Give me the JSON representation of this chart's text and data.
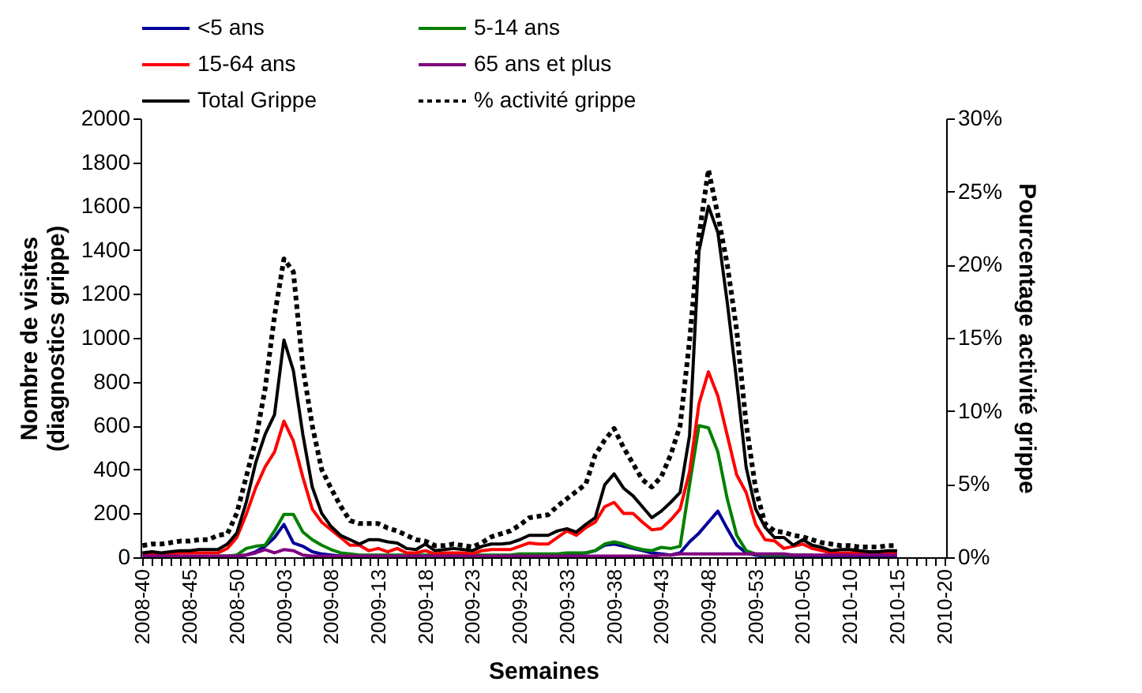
{
  "chart_data": {
    "type": "line",
    "xlabel": "Semaines",
    "ylabel": "Nombre de visites (diagnostics grippe)",
    "y2label": "Pourcentage activité grippe",
    "categories": [
      "2008-40",
      null,
      null,
      null,
      null,
      "2008-45",
      null,
      null,
      null,
      null,
      "2008-50",
      null,
      null,
      null,
      null,
      "2009-03",
      null,
      null,
      null,
      null,
      "2009-08",
      null,
      null,
      null,
      null,
      "2009-13",
      null,
      null,
      null,
      null,
      "2009-18",
      null,
      null,
      null,
      null,
      "2009-23",
      null,
      null,
      null,
      null,
      "2009-28",
      null,
      null,
      null,
      null,
      "2009-33",
      null,
      null,
      null,
      null,
      "2009-38",
      null,
      null,
      null,
      null,
      "2009-43",
      null,
      null,
      null,
      null,
      "2009-48",
      null,
      null,
      null,
      null,
      "2009-53",
      null,
      null,
      null,
      null,
      "2010-05",
      null,
      null,
      null,
      null,
      "2010-10",
      null,
      null,
      null,
      null,
      "2010-15",
      null,
      null,
      null,
      null,
      "2010-20"
    ],
    "ylim": [
      0,
      2000
    ],
    "yticks": [
      0,
      200,
      400,
      600,
      800,
      1000,
      1200,
      1400,
      1600,
      1800,
      2000
    ],
    "y2lim": [
      0,
      30
    ],
    "y2ticks": [
      {
        "value": 0,
        "label": "0%"
      },
      {
        "value": 5,
        "label": "5%"
      },
      {
        "value": 10,
        "label": "10%"
      },
      {
        "value": 15,
        "label": "15%"
      },
      {
        "value": 20,
        "label": "20%"
      },
      {
        "value": 25,
        "label": "25%"
      },
      {
        "value": 30,
        "label": "30%"
      }
    ],
    "legend": "top",
    "grid": false,
    "series": [
      {
        "name": "<5 ans",
        "color": "#000099",
        "values": [
          null,
          null,
          null,
          null,
          null,
          null,
          null,
          null,
          null,
          5,
          5,
          10,
          25,
          50,
          90,
          150,
          65,
          50,
          25,
          15,
          10,
          5,
          5,
          5,
          5,
          5,
          5,
          5,
          5,
          5,
          5,
          5,
          5,
          5,
          5,
          5,
          5,
          5,
          5,
          5,
          5,
          5,
          10,
          10,
          10,
          10,
          15,
          20,
          30,
          55,
          60,
          50,
          40,
          30,
          20,
          15,
          10,
          20,
          70,
          110,
          160,
          210,
          130,
          55,
          20,
          10,
          5,
          5,
          5,
          5,
          5,
          5,
          5,
          5,
          5,
          5,
          5,
          5,
          5,
          5,
          5,
          null,
          null,
          null,
          null,
          null
        ]
      },
      {
        "name": "5-14 ans",
        "color": "#008000",
        "values": [
          null,
          null,
          null,
          null,
          null,
          null,
          null,
          null,
          5,
          5,
          10,
          40,
          50,
          55,
          120,
          195,
          195,
          115,
          80,
          55,
          35,
          20,
          15,
          10,
          10,
          10,
          10,
          10,
          10,
          10,
          10,
          10,
          10,
          10,
          10,
          10,
          10,
          10,
          10,
          10,
          15,
          15,
          15,
          15,
          15,
          20,
          20,
          20,
          30,
          60,
          70,
          60,
          45,
          35,
          30,
          45,
          40,
          50,
          330,
          600,
          590,
          480,
          265,
          100,
          30,
          15,
          10,
          10,
          10,
          10,
          10,
          10,
          null,
          null,
          null,
          null,
          null,
          null,
          null,
          null,
          null,
          null,
          null,
          null,
          null,
          null
        ]
      },
      {
        "name": "15-64 ans",
        "color": "#ff0000",
        "values": [
          15,
          15,
          15,
          15,
          20,
          20,
          20,
          20,
          20,
          40,
          90,
          195,
          316,
          412,
          480,
          620,
          530,
          365,
          220,
          160,
          125,
          90,
          55,
          55,
          30,
          40,
          25,
          40,
          20,
          20,
          30,
          15,
          20,
          20,
          20,
          15,
          30,
          35,
          35,
          35,
          50,
          65,
          60,
          60,
          90,
          120,
          100,
          135,
          160,
          230,
          250,
          200,
          200,
          160,
          125,
          130,
          170,
          220,
          390,
          700,
          845,
          735,
          555,
          375,
          295,
          150,
          80,
          75,
          40,
          50,
          60,
          40,
          30,
          20,
          20,
          20,
          20,
          15,
          15,
          20,
          20,
          null,
          null,
          null,
          null,
          null
        ]
      },
      {
        "name": "65 ans et plus",
        "color": "#800080",
        "values": [
          5,
          5,
          5,
          5,
          5,
          5,
          5,
          5,
          5,
          5,
          5,
          10,
          20,
          35,
          20,
          35,
          30,
          10,
          5,
          5,
          5,
          5,
          5,
          5,
          5,
          5,
          5,
          5,
          5,
          5,
          5,
          5,
          5,
          5,
          5,
          5,
          5,
          5,
          5,
          5,
          5,
          5,
          5,
          5,
          5,
          5,
          5,
          5,
          5,
          5,
          5,
          5,
          5,
          5,
          5,
          10,
          10,
          15,
          15,
          15,
          15,
          15,
          15,
          15,
          15,
          15,
          15,
          15,
          15,
          10,
          10,
          10,
          10,
          10,
          10,
          10,
          10,
          10,
          10,
          10,
          10,
          null,
          null,
          null,
          null,
          null
        ]
      },
      {
        "name": "Total Grippe",
        "color": "#000000",
        "values": [
          20,
          25,
          20,
          25,
          30,
          30,
          35,
          35,
          35,
          60,
          110,
          250,
          430,
          560,
          650,
          990,
          850,
          560,
          320,
          200,
          140,
          100,
          80,
          60,
          80,
          80,
          70,
          65,
          40,
          35,
          60,
          30,
          35,
          40,
          35,
          30,
          50,
          60,
          60,
          65,
          80,
          100,
          100,
          100,
          120,
          130,
          115,
          150,
          180,
          330,
          380,
          315,
          280,
          230,
          180,
          210,
          250,
          295,
          555,
          1395,
          1600,
          1480,
          1160,
          800,
          410,
          220,
          137,
          90,
          90,
          55,
          80,
          55,
          45,
          30,
          35,
          35,
          30,
          25,
          25,
          30,
          30,
          null,
          null,
          null,
          null,
          null
        ]
      },
      {
        "name": "% activité grippe",
        "color": "#000000",
        "axis": "y2",
        "line_style": "dashed",
        "values": [
          0.8,
          0.9,
          0.9,
          1.0,
          1.1,
          1.1,
          1.2,
          1.2,
          1.5,
          1.6,
          3.0,
          5.5,
          8.0,
          11.5,
          16.5,
          20.4,
          19.5,
          13,
          9,
          6,
          4.7,
          3.5,
          2.5,
          2.3,
          2.3,
          2.3,
          2.0,
          1.8,
          1.5,
          1.2,
          1.1,
          0.8,
          0.8,
          0.9,
          0.8,
          0.7,
          1.0,
          1.4,
          1.6,
          1.8,
          2.2,
          2.7,
          2.8,
          2.9,
          3.5,
          4.0,
          4.5,
          5.0,
          7.0,
          8.0,
          8.8,
          7.5,
          6.4,
          5.3,
          4.8,
          5.5,
          7.0,
          9.0,
          14.8,
          22,
          26.5,
          23.4,
          20,
          15.5,
          9.1,
          4.7,
          2.3,
          1.8,
          1.7,
          1.5,
          1.4,
          1.2,
          1.0,
          0.9,
          0.8,
          0.8,
          0.7,
          0.7,
          0.7,
          0.8,
          0.8,
          null,
          null,
          null,
          null,
          null
        ]
      }
    ]
  }
}
